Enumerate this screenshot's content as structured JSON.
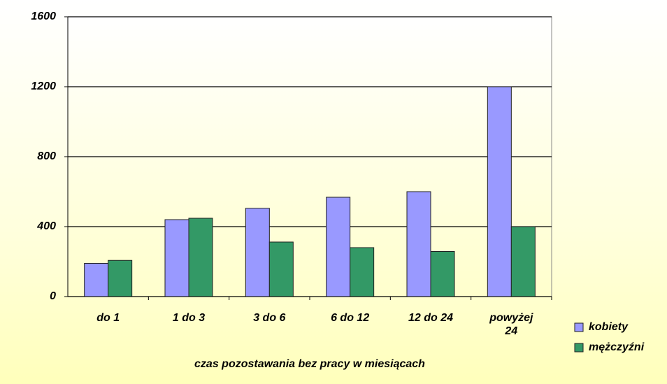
{
  "chart_data": {
    "type": "bar",
    "categories": [
      "do 1",
      "1 do 3",
      "3 do 6",
      "6 do 12",
      "12 do 24",
      "powyżej 24"
    ],
    "series": [
      {
        "name": "kobiety",
        "color": "#9999ff",
        "values": [
          190,
          440,
          505,
          568,
          600,
          1200
        ]
      },
      {
        "name": "mężczyźni",
        "color": "#339966",
        "values": [
          207,
          448,
          312,
          280,
          258,
          400
        ]
      }
    ],
    "ylim": [
      0,
      1600
    ],
    "yticks": [
      0,
      400,
      800,
      1200,
      1600
    ],
    "grid": true,
    "x_label": "czas pozostawania bez pracy w miesiącach",
    "legend": "right"
  }
}
